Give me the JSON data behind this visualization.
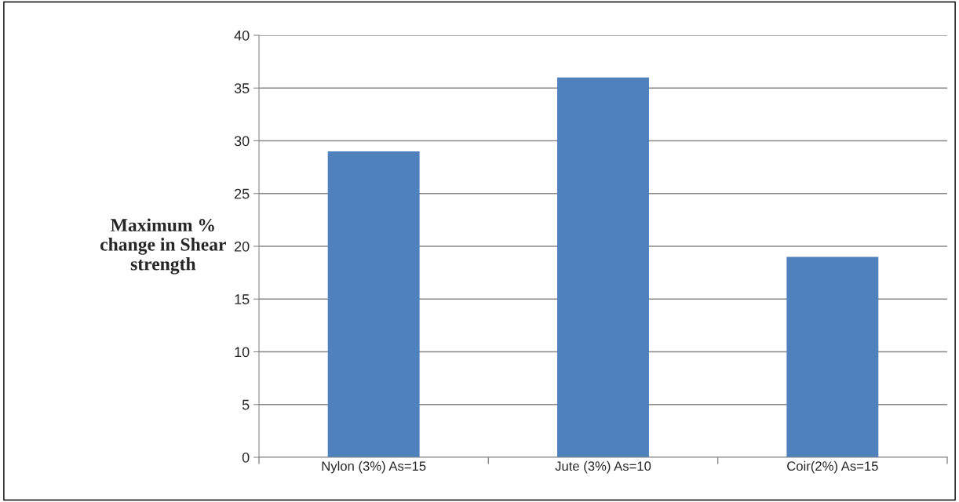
{
  "chart_data": {
    "type": "bar",
    "ylabel": "Maximum %\nchange in Shear\nstrength",
    "categories": [
      "Nylon (3%) As=15",
      "Jute (3%) As=10",
      "Coir(2%) As=15"
    ],
    "values": [
      29,
      36,
      19
    ],
    "color": "#4f81bd",
    "ylim": [
      0,
      40
    ],
    "yticks": [
      0,
      5,
      10,
      15,
      20,
      25,
      30,
      35,
      40
    ],
    "grid": "y"
  }
}
